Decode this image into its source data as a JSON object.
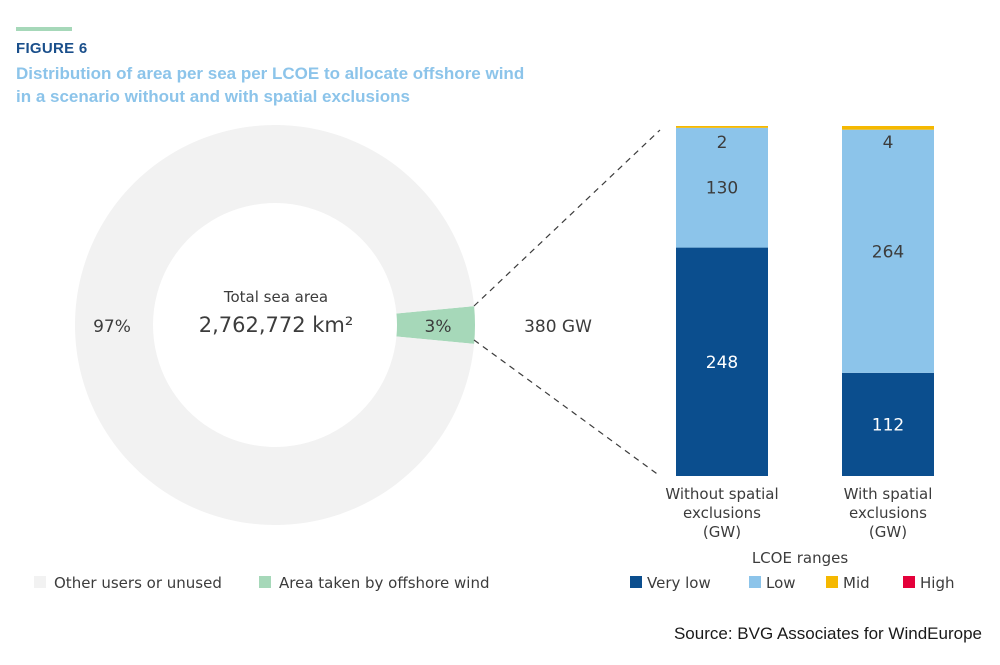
{
  "header": {
    "figure_label": "FIGURE 6",
    "title": "Distribution of area per sea per LCOE to allocate offshore wind in a scenario without and with spatial exclusions"
  },
  "source": "Source: BVG Associates for WindEurope",
  "chart_data": [
    {
      "type": "pie",
      "center_label": "Total sea area",
      "center_value": "2,762,772 km²",
      "slices": [
        {
          "name": "Other users or unused",
          "value": 97,
          "label": "97%",
          "color": "#f2f2f2"
        },
        {
          "name": "Area taken by offshore wind",
          "value": 3,
          "label": "3%",
          "color": "#a6d8b9"
        }
      ],
      "callout": "380 GW"
    },
    {
      "type": "bar",
      "stacked": true,
      "categories": [
        "Without spatial exclusions (GW)",
        "With spatial exclusions (GW)"
      ],
      "legend_title": "LCOE ranges",
      "series": [
        {
          "name": "Very low",
          "color": "#0b4e8e",
          "values": [
            248,
            112
          ]
        },
        {
          "name": "Low",
          "color": "#8cc4ea",
          "values": [
            130,
            264
          ]
        },
        {
          "name": "Mid",
          "color": "#f5b800",
          "values": [
            2,
            4
          ]
        },
        {
          "name": "High",
          "color": "#e4003a",
          "values": [
            0,
            0
          ]
        }
      ],
      "ylim": [
        0,
        380
      ]
    }
  ]
}
